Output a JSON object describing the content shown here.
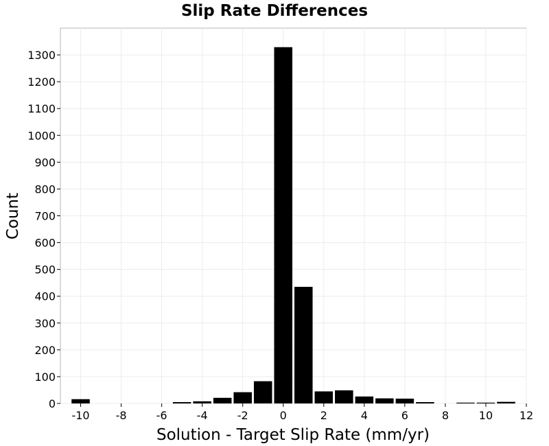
{
  "chart_data": {
    "type": "bar",
    "title": "Slip Rate Differences",
    "xlabel": "Solution - Target Slip Rate (mm/yr)",
    "ylabel": "Count",
    "xlim": [
      -11,
      12
    ],
    "ylim": [
      0,
      1400
    ],
    "xticks": [
      -10,
      -8,
      -6,
      -4,
      -2,
      0,
      2,
      4,
      6,
      8,
      10,
      12
    ],
    "yticks": [
      0,
      100,
      200,
      300,
      400,
      500,
      600,
      700,
      800,
      900,
      1000,
      1100,
      1200,
      1300
    ],
    "bin_width": 1,
    "bars": [
      {
        "x": -10,
        "y": 16
      },
      {
        "x": -9,
        "y": 0
      },
      {
        "x": -8,
        "y": 0
      },
      {
        "x": -7,
        "y": 0
      },
      {
        "x": -6,
        "y": 0
      },
      {
        "x": -5,
        "y": 5
      },
      {
        "x": -4,
        "y": 8
      },
      {
        "x": -3,
        "y": 21
      },
      {
        "x": -2,
        "y": 42
      },
      {
        "x": -1,
        "y": 83
      },
      {
        "x": 0,
        "y": 1329
      },
      {
        "x": 1,
        "y": 435
      },
      {
        "x": 2,
        "y": 45
      },
      {
        "x": 3,
        "y": 49
      },
      {
        "x": 4,
        "y": 26
      },
      {
        "x": 5,
        "y": 19
      },
      {
        "x": 6,
        "y": 18
      },
      {
        "x": 7,
        "y": 5
      },
      {
        "x": 8,
        "y": 0
      },
      {
        "x": 9,
        "y": 3
      },
      {
        "x": 10,
        "y": 3
      },
      {
        "x": 11,
        "y": 6
      }
    ],
    "grid": true,
    "bar_color": "#000000",
    "grid_color": "#ececec"
  }
}
